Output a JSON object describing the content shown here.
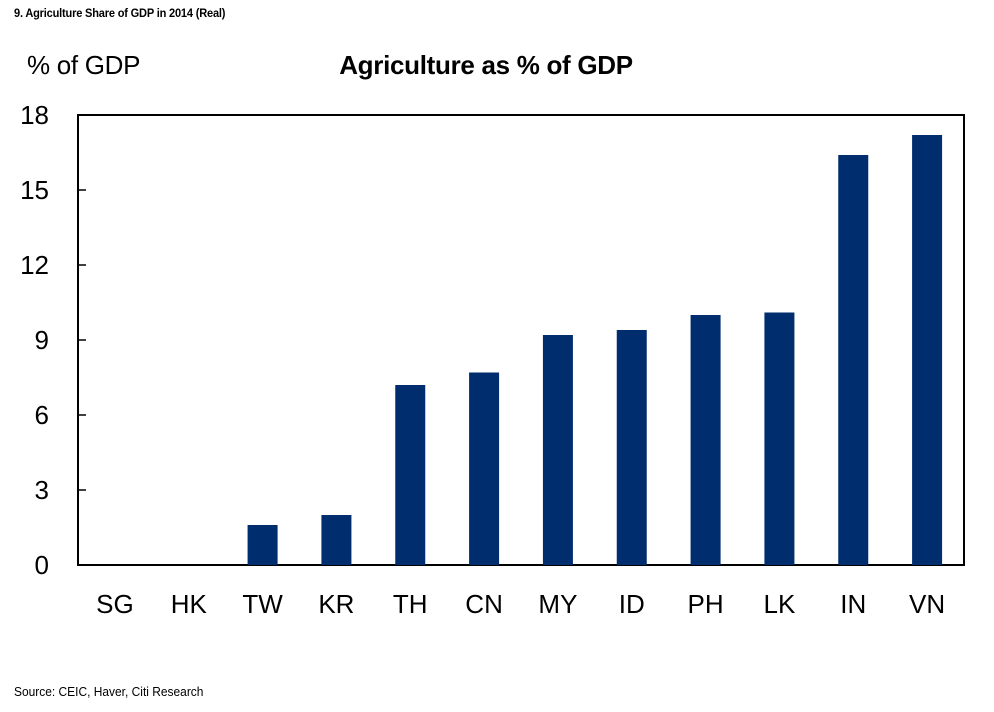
{
  "caption": "9. Agriculture Share of GDP in 2014 (Real)",
  "source": "Source: CEIC, Haver, Citi Research",
  "colors": {
    "bar": "#002D6E",
    "axis": "#000000"
  },
  "chart_data": {
    "type": "bar",
    "title": "Agriculture as % of GDP",
    "ylabel": "% of GDP",
    "xlabel": "",
    "categories": [
      "SG",
      "HK",
      "TW",
      "KR",
      "TH",
      "CN",
      "MY",
      "ID",
      "PH",
      "LK",
      "IN",
      "VN"
    ],
    "values": [
      0.0,
      0.0,
      1.6,
      2.0,
      7.2,
      7.7,
      9.2,
      9.4,
      10.0,
      10.1,
      16.4,
      17.2
    ],
    "yticks": [
      0,
      3,
      6,
      9,
      12,
      15,
      18
    ],
    "ylim": [
      0,
      18
    ],
    "grid": false,
    "legend": "none"
  }
}
